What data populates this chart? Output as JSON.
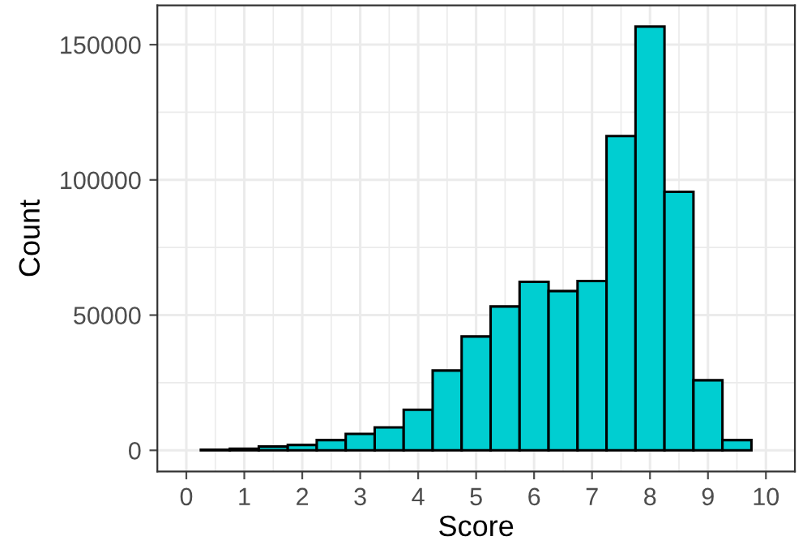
{
  "chart_data": {
    "type": "histogram",
    "xlabel": "Score",
    "ylabel": "Count",
    "bins": [
      0.25,
      0.75,
      1.25,
      1.75,
      2.25,
      2.75,
      3.25,
      3.75,
      4.25,
      4.75,
      5.25,
      5.75,
      6.25,
      6.75,
      7.25,
      7.75,
      8.25,
      8.75,
      9.25,
      9.75
    ],
    "values": [
      200,
      600,
      1400,
      2000,
      3800,
      6100,
      8500,
      15000,
      29500,
      42100,
      53200,
      62300,
      58900,
      62600,
      116200,
      156700,
      95600,
      25900,
      3800
    ],
    "color": "#00ced1",
    "xlim": [
      -0.5,
      10.5
    ],
    "xticks": [
      0,
      1,
      2,
      3,
      4,
      5,
      6,
      7,
      8,
      9,
      10
    ],
    "ylim": [
      -7800,
      164500
    ],
    "yticks": [
      0,
      50000,
      100000,
      150000
    ],
    "grid": true
  }
}
